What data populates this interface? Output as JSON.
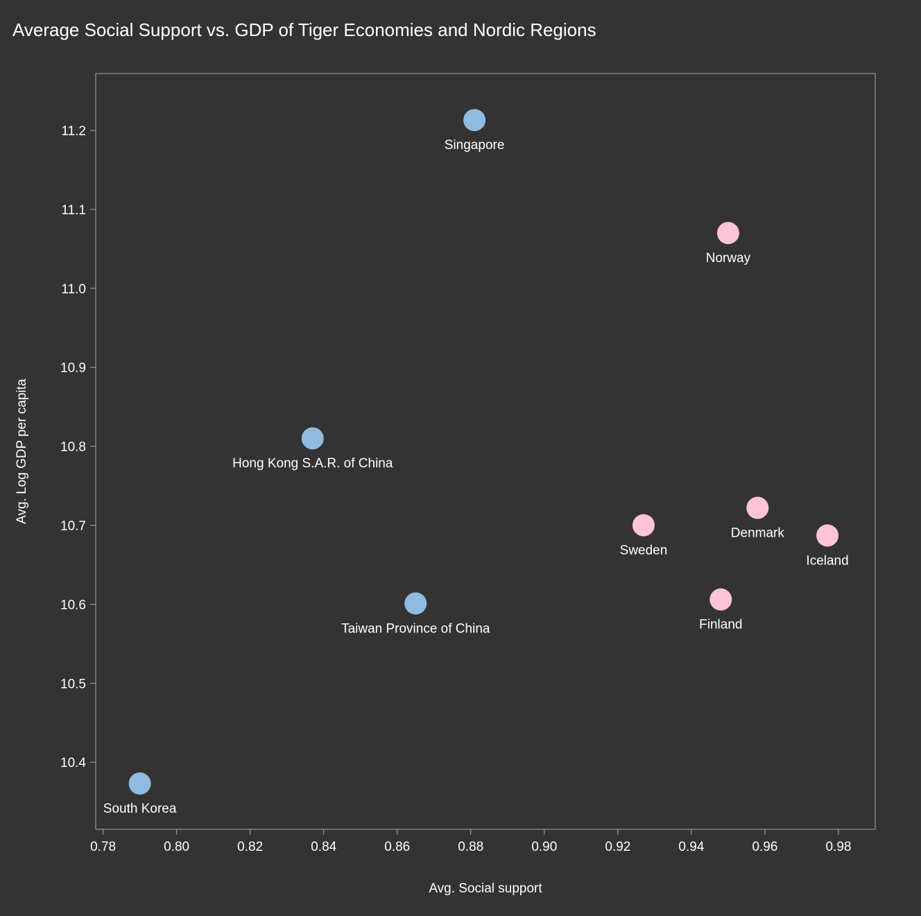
{
  "chart_data": {
    "type": "scatter",
    "title": "Average Social Support vs. GDP of Tiger Economies and Nordic Regions",
    "xlabel": "Avg. Social support",
    "ylabel": "Avg. Log GDP per capita",
    "xlim": [
      0.778,
      0.99
    ],
    "ylim": [
      10.315,
      11.272
    ],
    "x_ticks": [
      "0.78",
      "0.80",
      "0.82",
      "0.84",
      "0.86",
      "0.88",
      "0.90",
      "0.92",
      "0.94",
      "0.96",
      "0.98"
    ],
    "y_ticks": [
      "10.4",
      "10.5",
      "10.6",
      "10.7",
      "10.8",
      "10.9",
      "11.0",
      "11.1",
      "11.2"
    ],
    "grid": false,
    "legend": "none",
    "colors": {
      "tiger": "#8fbbe0",
      "nordic": "#ffc4d6",
      "background": "#333333",
      "axis": "#aaaaaa"
    },
    "series": [
      {
        "group": "tiger",
        "points": [
          {
            "label": "Singapore",
            "x": 0.881,
            "y": 11.213
          },
          {
            "label": "Hong Kong S.A.R. of China",
            "x": 0.837,
            "y": 10.81
          },
          {
            "label": "Taiwan Province of China",
            "x": 0.865,
            "y": 10.601
          },
          {
            "label": "South Korea",
            "x": 0.79,
            "y": 10.373
          }
        ]
      },
      {
        "group": "nordic",
        "points": [
          {
            "label": "Norway",
            "x": 0.95,
            "y": 11.07
          },
          {
            "label": "Denmark",
            "x": 0.958,
            "y": 10.722
          },
          {
            "label": "Iceland",
            "x": 0.977,
            "y": 10.687
          },
          {
            "label": "Sweden",
            "x": 0.927,
            "y": 10.7
          },
          {
            "label": "Finland",
            "x": 0.948,
            "y": 10.606
          }
        ]
      }
    ]
  }
}
